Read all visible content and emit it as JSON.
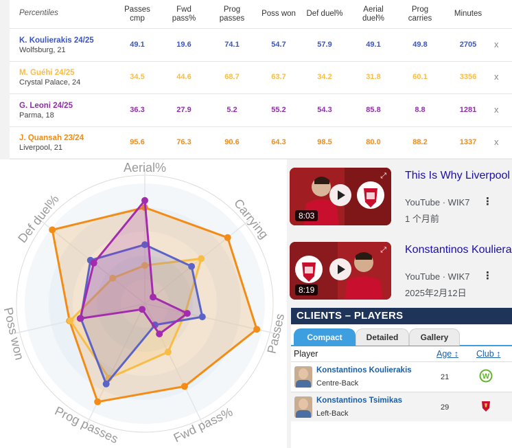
{
  "table": {
    "header_label": "Percentiles",
    "columns": [
      {
        "line1": "Passes",
        "line2": "cmp"
      },
      {
        "line1": "Fwd",
        "line2": "pass%"
      },
      {
        "line1": "Prog",
        "line2": "passes"
      },
      {
        "line1": "Poss won",
        "line2": ""
      },
      {
        "line1": "Def duel%",
        "line2": ""
      },
      {
        "line1": "Aerial",
        "line2": "duel%"
      },
      {
        "line1": "Prog",
        "line2": "carries"
      },
      {
        "line1": "Minutes",
        "line2": ""
      }
    ],
    "remove_label": "x",
    "players": [
      {
        "name": "K. Koulierakis 24/25",
        "team": "Wolfsburg, 21",
        "color": "#3a55c4",
        "values": [
          "49.1",
          "19.6",
          "74.1",
          "54.7",
          "57.9",
          "49.1",
          "49.8",
          "2705"
        ]
      },
      {
        "name": "M. Guéhi 24/25",
        "team": "Crystal Palace, 24",
        "color": "#f8bd46",
        "values": [
          "34.5",
          "44.6",
          "68.7",
          "63.7",
          "34.2",
          "31.8",
          "60.1",
          "3356"
        ]
      },
      {
        "name": "G. Leoni 24/25",
        "team": "Parma, 18",
        "color": "#8e2fa8",
        "values": [
          "36.3",
          "27.9",
          "5.2",
          "55.2",
          "54.3",
          "85.8",
          "8.8",
          "1281"
        ]
      },
      {
        "name": "J. Quansah 23/24",
        "team": "Liverpool, 21",
        "color": "#f28c16",
        "values": [
          "95.6",
          "76.3",
          "90.6",
          "64.3",
          "98.5",
          "80.0",
          "88.2",
          "1337"
        ]
      }
    ]
  },
  "radar": {
    "axes": [
      "Aerial%",
      "Carrying",
      "Passes",
      "Fwd pass%",
      "Prog passes",
      "Poss won",
      "Def duel%"
    ],
    "series": [
      {
        "player": "J. Quansah 23/24",
        "color": "#f28c16",
        "values": [
          80.0,
          88.2,
          95.6,
          76.3,
          90.6,
          64.3,
          98.5
        ]
      },
      {
        "player": "M. Guéhi 24/25",
        "color": "#f8bd46",
        "values": [
          31.8,
          60.1,
          34.5,
          44.6,
          68.7,
          63.7,
          34.2
        ]
      },
      {
        "player": "K. Koulierakis 24/25",
        "color": "#5b63c7",
        "values": [
          49.1,
          49.8,
          49.1,
          19.6,
          74.1,
          54.7,
          57.9
        ]
      },
      {
        "player": "G. Leoni 24/25",
        "color": "#a32cae",
        "values": [
          85.8,
          8.8,
          36.3,
          27.9,
          5.2,
          55.2,
          54.3
        ]
      }
    ]
  },
  "videos": [
    {
      "title": "This Is Why Liverpool",
      "source": "YouTube · WIK7",
      "date": "1 个月前",
      "duration": "8:03"
    },
    {
      "title": "Konstantinos Kouliera",
      "source": "YouTube · WIK7",
      "date": "2025年2月12日",
      "duration": "8:19"
    }
  ],
  "clients": {
    "title": "CLIENTS – PLAYERS",
    "tabs": [
      "Compact",
      "Detailed",
      "Gallery"
    ],
    "active_tab": "Compact",
    "col_player": "Player",
    "col_age": "Age ↕",
    "col_club": "Club ↕",
    "rows": [
      {
        "name": "Konstantinos Koulierakis",
        "position": "Centre-Back",
        "age": "21",
        "club": "wolfsburg-logo"
      },
      {
        "name": "Konstantinos Tsimikas",
        "position": "Left-Back",
        "age": "29",
        "club": "liverpool-logo"
      }
    ]
  }
}
